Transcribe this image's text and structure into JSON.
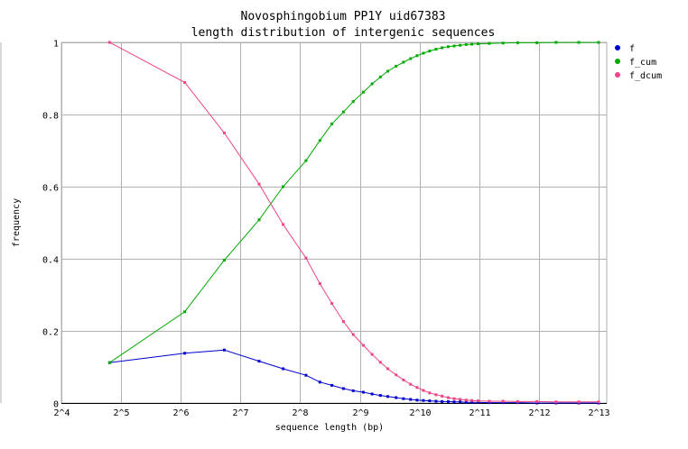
{
  "chart_data": {
    "type": "line",
    "title": "Novosphingobium PP1Y uid67383",
    "subtitle": "length distribution of intergenic sequences",
    "xlabel": "sequence length (bp)",
    "ylabel": "frequency",
    "x_scale": "log2",
    "xlim": [
      16,
      9000
    ],
    "ylim": [
      0,
      1
    ],
    "grid": true,
    "legend_position": "right",
    "x_ticks": [
      {
        "value": 16,
        "label": "2^4"
      },
      {
        "value": 32,
        "label": "2^5"
      },
      {
        "value": 64,
        "label": "2^6"
      },
      {
        "value": 128,
        "label": "2^7"
      },
      {
        "value": 256,
        "label": "2^8"
      },
      {
        "value": 512,
        "label": "2^9"
      },
      {
        "value": 1024,
        "label": "2^10"
      },
      {
        "value": 2048,
        "label": "2^11"
      },
      {
        "value": 4096,
        "label": "2^12"
      },
      {
        "value": 8192,
        "label": "2^13"
      }
    ],
    "y_ticks": [
      {
        "value": 0,
        "label": "0"
      },
      {
        "value": 0.2,
        "label": "0.2"
      },
      {
        "value": 0.4,
        "label": "0.4"
      },
      {
        "value": 0.6,
        "label": "0.6"
      },
      {
        "value": 0.8,
        "label": "0.8"
      },
      {
        "value": 1,
        "label": "1"
      }
    ],
    "series": [
      {
        "name": "f",
        "color": "#0000cc",
        "points": [
          [
            28,
            0.112
          ],
          [
            67,
            0.138
          ],
          [
            106,
            0.147
          ],
          [
            159,
            0.116
          ],
          [
            210,
            0.095
          ],
          [
            274,
            0.077
          ],
          [
            322,
            0.058
          ],
          [
            370,
            0.049
          ],
          [
            423,
            0.04
          ],
          [
            474,
            0.034
          ],
          [
            533,
            0.03
          ],
          [
            590,
            0.025
          ],
          [
            650,
            0.021
          ],
          [
            708,
            0.018
          ],
          [
            780,
            0.015
          ],
          [
            850,
            0.012
          ],
          [
            922,
            0.01
          ],
          [
            995,
            0.008
          ],
          [
            1070,
            0.007
          ],
          [
            1150,
            0.006
          ],
          [
            1240,
            0.005
          ],
          [
            1330,
            0.004
          ],
          [
            1430,
            0.004
          ],
          [
            1530,
            0.003
          ],
          [
            1640,
            0.003
          ],
          [
            1760,
            0.002
          ],
          [
            1880,
            0.002
          ],
          [
            2020,
            0.002
          ],
          [
            2300,
            0.001
          ],
          [
            2700,
            0.001
          ],
          [
            3200,
            0.001
          ],
          [
            4000,
            0.0
          ],
          [
            5000,
            0.0
          ],
          [
            6500,
            0.0
          ],
          [
            8192,
            0.0
          ]
        ]
      },
      {
        "name": "f_cum",
        "color": "#00aa00",
        "points": [
          [
            28,
            0.112
          ],
          [
            67,
            0.253
          ],
          [
            106,
            0.396
          ],
          [
            159,
            0.508
          ],
          [
            210,
            0.6
          ],
          [
            274,
            0.672
          ],
          [
            322,
            0.728
          ],
          [
            370,
            0.774
          ],
          [
            423,
            0.807
          ],
          [
            474,
            0.836
          ],
          [
            533,
            0.862
          ],
          [
            590,
            0.885
          ],
          [
            650,
            0.904
          ],
          [
            708,
            0.92
          ],
          [
            780,
            0.934
          ],
          [
            850,
            0.945
          ],
          [
            922,
            0.955
          ],
          [
            995,
            0.963
          ],
          [
            1070,
            0.97
          ],
          [
            1150,
            0.976
          ],
          [
            1240,
            0.981
          ],
          [
            1330,
            0.985
          ],
          [
            1430,
            0.988
          ],
          [
            1530,
            0.99
          ],
          [
            1640,
            0.992
          ],
          [
            1760,
            0.994
          ],
          [
            1880,
            0.995
          ],
          [
            2020,
            0.996
          ],
          [
            2300,
            0.997
          ],
          [
            2700,
            0.998
          ],
          [
            3200,
            0.999
          ],
          [
            4000,
            0.999
          ],
          [
            5000,
            1.0
          ],
          [
            6500,
            1.0
          ],
          [
            8192,
            1.0
          ]
        ]
      },
      {
        "name": "f_dcum",
        "color": "#ee4488",
        "points": [
          [
            28,
            1.0
          ],
          [
            67,
            0.889
          ],
          [
            106,
            0.749
          ],
          [
            159,
            0.607
          ],
          [
            210,
            0.495
          ],
          [
            274,
            0.402
          ],
          [
            322,
            0.331
          ],
          [
            370,
            0.276
          ],
          [
            423,
            0.226
          ],
          [
            474,
            0.19
          ],
          [
            533,
            0.16
          ],
          [
            590,
            0.135
          ],
          [
            650,
            0.113
          ],
          [
            708,
            0.095
          ],
          [
            780,
            0.078
          ],
          [
            850,
            0.064
          ],
          [
            922,
            0.052
          ],
          [
            995,
            0.043
          ],
          [
            1070,
            0.035
          ],
          [
            1150,
            0.028
          ],
          [
            1240,
            0.023
          ],
          [
            1330,
            0.019
          ],
          [
            1430,
            0.015
          ],
          [
            1530,
            0.012
          ],
          [
            1640,
            0.01
          ],
          [
            1760,
            0.008
          ],
          [
            1880,
            0.007
          ],
          [
            2020,
            0.006
          ],
          [
            2300,
            0.005
          ],
          [
            2700,
            0.005
          ],
          [
            3200,
            0.004
          ],
          [
            4000,
            0.004
          ],
          [
            5000,
            0.003
          ],
          [
            6500,
            0.003
          ],
          [
            8192,
            0.003
          ]
        ]
      }
    ]
  }
}
